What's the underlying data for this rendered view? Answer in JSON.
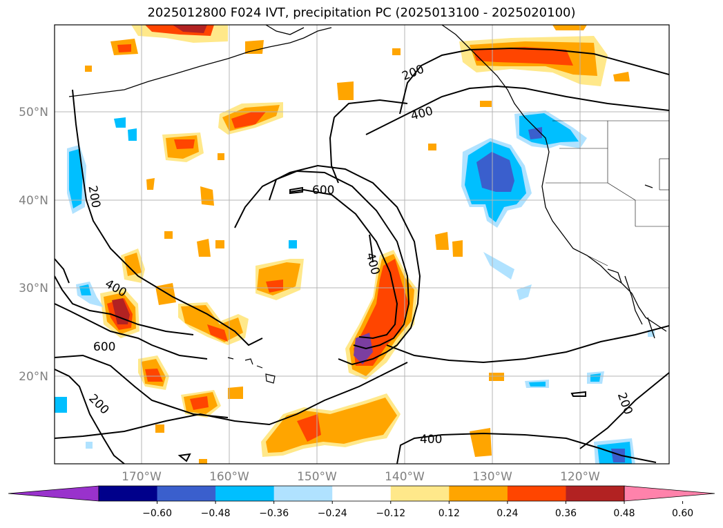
{
  "title": "2025012800 F024 IVT, precipitation PC (2025013100 - 2025020100)",
  "longitude_labels": [
    "170°W",
    "160°W",
    "150°W",
    "140°W",
    "130°W",
    "120°W"
  ],
  "latitude_labels": [
    "50°N",
    "40°N",
    "30°N",
    "20°N"
  ],
  "contour_labels": [
    "200",
    "400",
    "600",
    "200",
    "400",
    "200",
    "400",
    "600",
    "400",
    "200"
  ],
  "colorbar": {
    "ticks": [
      "−0.60",
      "−0.48",
      "−0.36",
      "−0.24",
      "−0.12",
      "0.12",
      "0.24",
      "0.36",
      "0.48",
      "0.60"
    ],
    "colors": [
      "#9932cc",
      "#00008b",
      "#3a5fcd",
      "#00bfff",
      "#b0e2ff",
      "#ffffff",
      "#ffe88a",
      "#ffa500",
      "#ff4500",
      "#b22222",
      "#ff82ab"
    ]
  },
  "colors": {
    "shade_light_yellow": "#ffe88a",
    "shade_orange": "#ffa500",
    "shade_red": "#ff4500",
    "shade_dark_red": "#b22222",
    "shade_purple": "#7b3ea0",
    "shade_light_blue": "#b0e2ff",
    "shade_blue": "#00bfff",
    "shade_mid_blue": "#3a5fcd",
    "coastline": "#000000",
    "gridline": "#b4b4b4"
  }
}
